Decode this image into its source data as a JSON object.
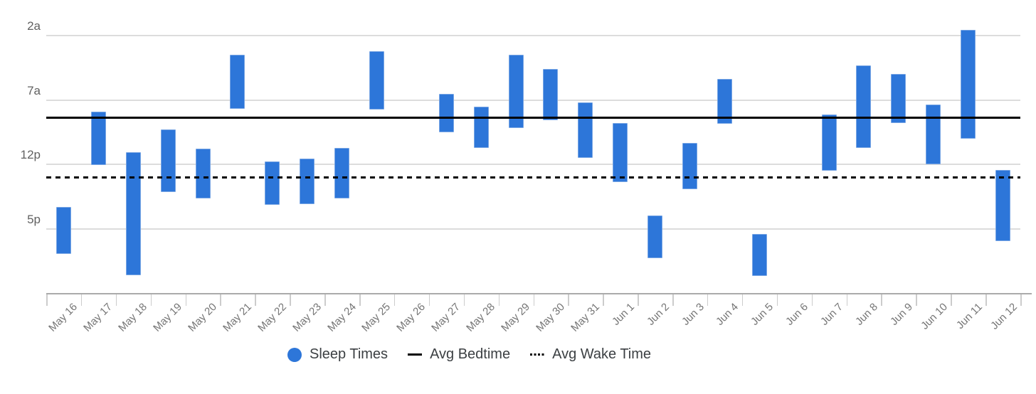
{
  "chart_data": {
    "type": "bar",
    "subtype": "floating-range-vertical",
    "title": "",
    "categories": [
      "May 16",
      "May 17",
      "May 18",
      "May 19",
      "May 20",
      "May 21",
      "May 22",
      "May 23",
      "May 24",
      "May 25",
      "May 26",
      "May 27",
      "May 28",
      "May 29",
      "May 30",
      "May 31",
      "Jun 1",
      "Jun 2",
      "Jun 3",
      "Jun 4",
      "Jun 5",
      "Jun 6",
      "Jun 7",
      "Jun 8",
      "Jun 9",
      "Jun 10",
      "Jun 11",
      "Jun 12"
    ],
    "series": [
      {
        "name": "Sleep Times",
        "color": "#2d76d9",
        "ranges_hours": [
          [
            15.3,
            18.92
          ],
          [
            7.93,
            12.05
          ],
          [
            11.05,
            20.62
          ],
          [
            9.3,
            14.14
          ],
          [
            10.79,
            14.63
          ],
          [
            3.49,
            7.7
          ],
          [
            11.78,
            15.15
          ],
          [
            11.56,
            15.06
          ],
          [
            10.73,
            14.63
          ],
          [
            3.2,
            7.74
          ],
          null,
          [
            6.51,
            9.49
          ],
          [
            7.52,
            10.7
          ],
          [
            3.51,
            9.17
          ],
          [
            4.58,
            8.58
          ],
          [
            7.2,
            11.51
          ],
          [
            8.8,
            13.35
          ],
          [
            15.97,
            19.29
          ],
          [
            10.33,
            13.9
          ],
          [
            5.35,
            8.84
          ],
          [
            17.41,
            20.66
          ],
          null,
          [
            8.11,
            12.5
          ],
          [
            4.3,
            10.7
          ],
          [
            5.0,
            8.8
          ],
          [
            7.37,
            11.99
          ],
          [
            1.54,
            10.0
          ],
          [
            12.44,
            17.96
          ]
        ]
      }
    ],
    "reference_lines": [
      {
        "name": "Avg Bedtime",
        "hour": 8.37,
        "style": "solid",
        "color": "#000000"
      },
      {
        "name": "Avg Wake Time",
        "hour": 12.98,
        "style": "dotted",
        "color": "#000000"
      }
    ],
    "y_axis": {
      "unit": "time-of-day",
      "direction": "down",
      "domain_hours": [
        0,
        22
      ],
      "ticks": [
        {
          "label": "2a",
          "hour": 2
        },
        {
          "label": "7a",
          "hour": 7
        },
        {
          "label": "12p",
          "hour": 12
        },
        {
          "label": "5p",
          "hour": 17
        }
      ],
      "gridlines": true
    },
    "x_axis": {
      "label_rotation_deg": -45,
      "tick_count": 29
    },
    "legend": {
      "position": "bottom",
      "items": [
        {
          "label": "Sleep Times",
          "swatch": "circle",
          "color": "#2d76d9"
        },
        {
          "label": "Avg Bedtime",
          "swatch": "solid-line",
          "color": "#000000"
        },
        {
          "label": "Avg Wake Time",
          "swatch": "dotted-line",
          "color": "#000000"
        }
      ]
    }
  },
  "colors": {
    "background": "#ffffff",
    "bar": "#2d76d9",
    "bar_border": "#79a6e4",
    "gridline": "#dcdcdc",
    "axis_line": "#aaaaaa",
    "tick": "#cccccc",
    "y_label": "#616161",
    "x_label": "#757575",
    "legend_text": "#3c4043",
    "ref_line": "#000000"
  }
}
